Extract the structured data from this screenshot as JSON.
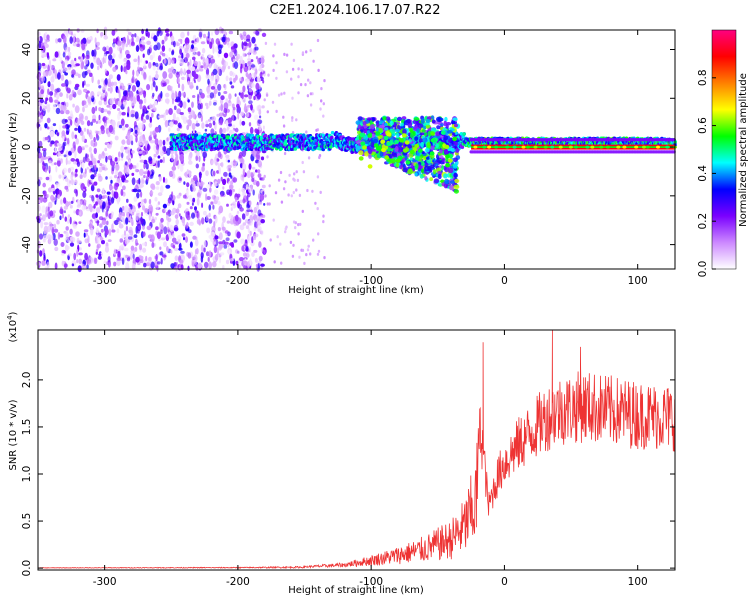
{
  "title": "C2E1.2024.106.17.07.R22",
  "chart_data": [
    {
      "type": "heatmap",
      "xlabel": "Height of straight line (km)",
      "ylabel": "Frequency (Hz)",
      "xlim": [
        -350,
        128
      ],
      "ylim": [
        -50,
        48
      ],
      "x_ticks": [
        -300,
        -200,
        -100,
        0,
        100
      ],
      "x_tick_labels": [
        "-300",
        "-200",
        "-100",
        "0",
        "100"
      ],
      "y_ticks": [
        -40,
        -20,
        0,
        20,
        40
      ],
      "y_tick_labels": [
        "-40",
        "-20",
        "0",
        "20",
        "40"
      ],
      "colorbar": {
        "label": "Normalized spectral amplitude",
        "range": [
          0,
          1
        ],
        "ticks": [
          0.0,
          0.2,
          0.4,
          0.6,
          0.8
        ],
        "tick_labels": [
          "0.0",
          "0.2",
          "0.4",
          "0.6",
          "0.8"
        ],
        "colors": [
          "#ffffff",
          "#cc88ff",
          "#7a00ff",
          "#0000ff",
          "#00ffff",
          "#00ff00",
          "#ffff00",
          "#ff8000",
          "#ff0000",
          "#ff0080"
        ]
      },
      "features": [
        {
          "name": "broadband noise",
          "x_range": [
            -350,
            -180
          ],
          "freq_range": [
            -50,
            48
          ],
          "amplitude": 0.1
        },
        {
          "name": "signal band",
          "x_range": [
            -250,
            128
          ],
          "center_freq": 2,
          "amplitude": 0.55
        },
        {
          "name": "spread region",
          "x_range": [
            -110,
            -35
          ],
          "freq_range": [
            -22,
            15
          ],
          "amplitude": 0.5
        },
        {
          "name": "strong line",
          "x_range": [
            -25,
            128
          ],
          "center_freq": 0,
          "amplitude": 0.9
        }
      ],
      "grid": false
    },
    {
      "type": "line",
      "xlabel": "Height of straight line (km)",
      "ylabel": "SNR (10 * v/v)",
      "y_multiplier": "(x10",
      "y_multiplier_exp": "4",
      "xlim": [
        -350,
        128
      ],
      "ylim": [
        -0.02,
        2.53
      ],
      "x_ticks": [
        -300,
        -200,
        -100,
        0,
        100
      ],
      "x_tick_labels": [
        "-300",
        "-200",
        "-100",
        "0",
        "100"
      ],
      "y_ticks": [
        0.0,
        0.5,
        1.0,
        1.5,
        2.0
      ],
      "y_tick_labels": [
        "0.0",
        "0.5",
        "1.0",
        "1.5",
        "2.0"
      ],
      "series_color": "#ee3333",
      "envelope": {
        "x": [
          -350,
          -200,
          -150,
          -120,
          -100,
          -80,
          -60,
          -40,
          -30,
          -22,
          -18,
          -16,
          -12,
          -5,
          0,
          10,
          20,
          30,
          40,
          60,
          80,
          100,
          128
        ],
        "y": [
          0.005,
          0.01,
          0.02,
          0.05,
          0.12,
          0.2,
          0.3,
          0.45,
          0.65,
          1.0,
          1.6,
          1.35,
          0.7,
          1.05,
          1.2,
          1.4,
          1.55,
          1.7,
          1.8,
          1.85,
          1.8,
          1.75,
          1.72
        ]
      },
      "peak_points": [
        {
          "x": -16,
          "y": 2.4
        },
        {
          "x": 36,
          "y": 2.53
        },
        {
          "x": 57,
          "y": 2.35
        }
      ],
      "grid": false
    }
  ]
}
